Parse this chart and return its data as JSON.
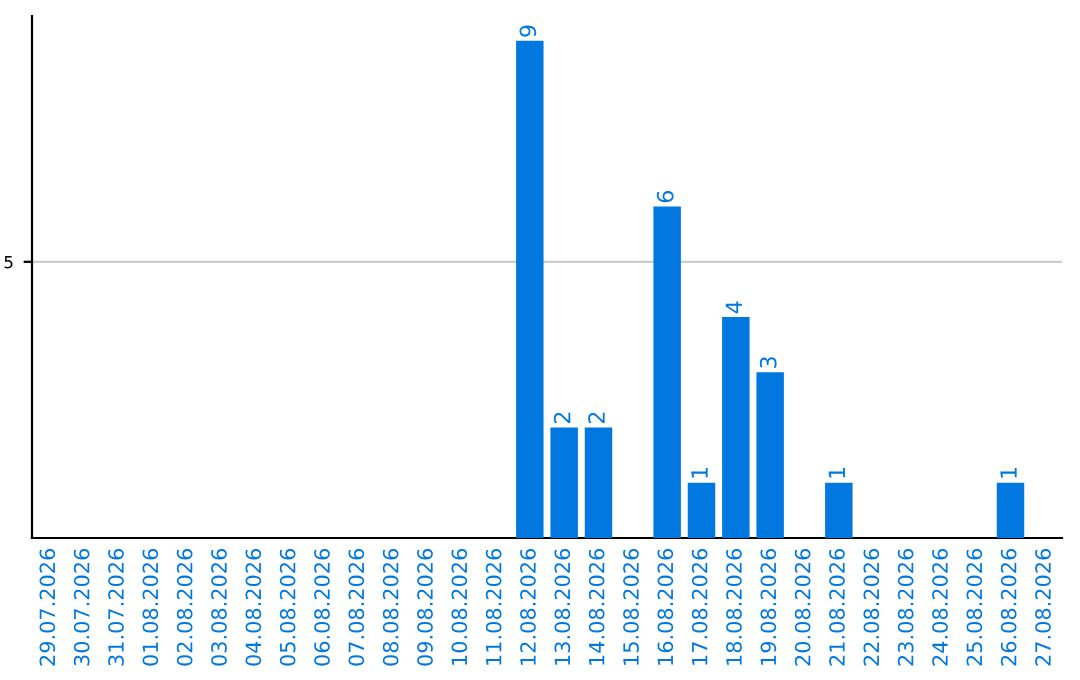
{
  "chart_data": {
    "type": "bar",
    "categories": [
      "29.07.2026",
      "30.07.2026",
      "31.07.2026",
      "01.08.2026",
      "02.08.2026",
      "03.08.2026",
      "04.08.2026",
      "05.08.2026",
      "06.08.2026",
      "07.08.2026",
      "08.08.2026",
      "09.08.2026",
      "10.08.2026",
      "11.08.2026",
      "12.08.2026",
      "13.08.2026",
      "14.08.2026",
      "15.08.2026",
      "16.08.2026",
      "17.08.2026",
      "18.08.2026",
      "19.08.2026",
      "20.08.2026",
      "21.08.2026",
      "22.08.2026",
      "23.08.2026",
      "24.08.2026",
      "25.08.2026",
      "26.08.2026",
      "27.08.2026"
    ],
    "values": [
      null,
      null,
      null,
      null,
      null,
      null,
      null,
      null,
      null,
      null,
      null,
      null,
      null,
      null,
      9,
      2,
      2,
      null,
      6,
      1,
      4,
      3,
      null,
      1,
      null,
      null,
      null,
      null,
      1,
      null
    ],
    "data_labels": true,
    "ylim": [
      0,
      9.45
    ],
    "color": "#0078e0",
    "ref_lines": [
      {
        "axis": "y",
        "value": 5,
        "label": "5",
        "color": "#cccccc"
      }
    ]
  }
}
